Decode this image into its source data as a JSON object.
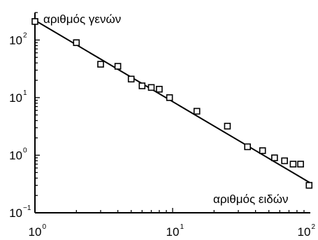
{
  "chart_data": {
    "type": "scatter",
    "title": "",
    "x_scale": "log",
    "y_scale": "log",
    "xlim": [
      1,
      100
    ],
    "ylim": [
      0.1,
      300
    ],
    "x_ticks": [
      {
        "value": 1,
        "base": "10",
        "exp": "0"
      },
      {
        "value": 10,
        "base": "10",
        "exp": "1"
      },
      {
        "value": 100,
        "base": "10",
        "exp": "2"
      }
    ],
    "y_ticks": [
      {
        "value": 0.1,
        "base": "10",
        "exp": "−1"
      },
      {
        "value": 1,
        "base": "10",
        "exp": "0"
      },
      {
        "value": 10,
        "base": "10",
        "exp": "1"
      },
      {
        "value": 100,
        "base": "10",
        "exp": "2"
      }
    ],
    "ylabel": "αριθμός γενών",
    "xlabel": "αριθμός ειδών",
    "grid": false,
    "points": [
      {
        "x": 1,
        "y": 210
      },
      {
        "x": 2,
        "y": 90
      },
      {
        "x": 3,
        "y": 38
      },
      {
        "x": 4,
        "y": 35
      },
      {
        "x": 5,
        "y": 21
      },
      {
        "x": 6,
        "y": 16
      },
      {
        "x": 7,
        "y": 15
      },
      {
        "x": 8,
        "y": 14
      },
      {
        "x": 9.5,
        "y": 10
      },
      {
        "x": 15,
        "y": 5.8
      },
      {
        "x": 25,
        "y": 3.2
      },
      {
        "x": 35,
        "y": 1.4
      },
      {
        "x": 45,
        "y": 1.2
      },
      {
        "x": 55,
        "y": 0.9
      },
      {
        "x": 65,
        "y": 0.8
      },
      {
        "x": 75,
        "y": 0.7
      },
      {
        "x": 85,
        "y": 0.7
      },
      {
        "x": 98,
        "y": 0.3
      }
    ],
    "fit_line": {
      "x": [
        1,
        100
      ],
      "y": [
        220,
        0.33
      ]
    }
  }
}
